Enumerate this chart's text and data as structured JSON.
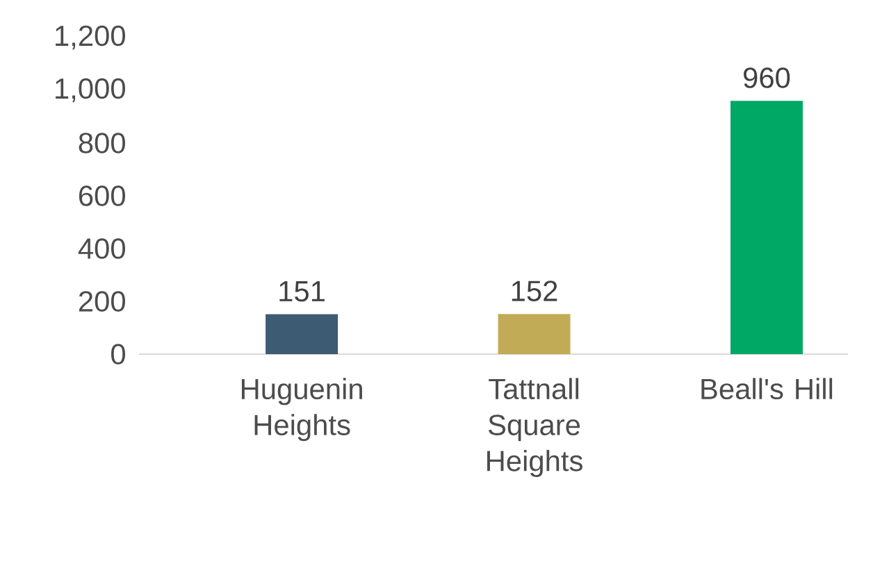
{
  "chart_data": {
    "type": "bar",
    "categories": [
      "Huguenin Heights",
      "Tattnall Square Heights",
      "Beall's Hill"
    ],
    "values": [
      151,
      152,
      960
    ],
    "colors": [
      "#3e5b74",
      "#c2ab57",
      "#00a865"
    ],
    "ylim": [
      0,
      1200
    ],
    "yticks": [
      0,
      {
        "value": 200,
        "label": "200"
      },
      {
        "value": 400,
        "label": "400"
      },
      {
        "value": 600,
        "label": "600"
      },
      {
        "value": 800,
        "label": "800"
      },
      {
        "value": 1000,
        "label": "1,000"
      },
      {
        "value": 1200,
        "label": "1,200"
      }
    ],
    "data_labels": true
  }
}
